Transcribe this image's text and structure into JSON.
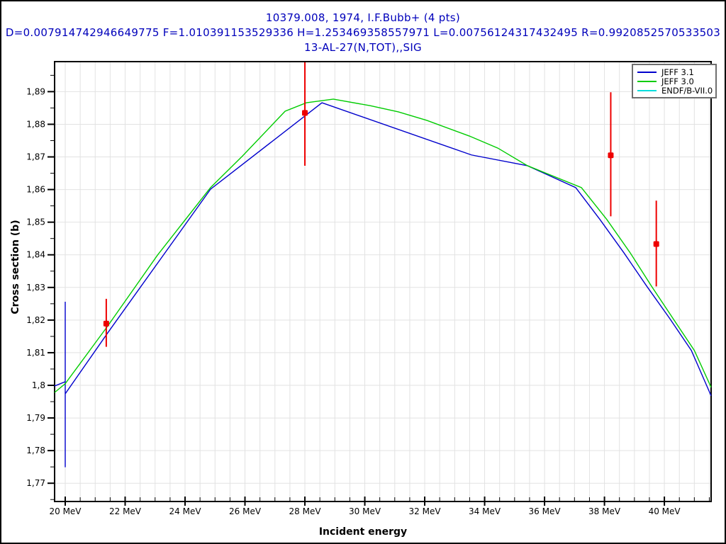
{
  "header": {
    "line1": "10379.008, 1974, I.F.Bubb+ (4 pts)",
    "line2": "D=0.007914742946649775 F=1.010391153529336 H=1.253469358557971 L=0.00756124317432495 R=0.9920852570533503",
    "line3": "13-AL-27(N,TOT),,SIG",
    "color": "#0000bb"
  },
  "axes": {
    "x_label": "Incident energy",
    "y_label": "Cross section (b)",
    "x_unit": "MeV"
  },
  "legend": {
    "items": [
      {
        "label": "JEFF 3.1",
        "color": "#0000cc"
      },
      {
        "label": "JEFF 3.0",
        "color": "#00cc00"
      },
      {
        "label": "ENDF/B-VII.0",
        "color": "#00dddd"
      }
    ]
  },
  "chart_data": {
    "type": "line",
    "title": "10379.008, 1974, I.F.Bubb+ (4 pts)",
    "subtitle": "13-AL-27(N,TOT),,SIG",
    "xlabel": "Incident energy",
    "ylabel": "Cross section (b)",
    "xlim": [
      19.645,
      41.56
    ],
    "ylim": [
      1.7644,
      1.8992
    ],
    "grid": {
      "on": true,
      "color": "#e2e2e2",
      "x_step": 0.5,
      "y_step": 0.01
    },
    "x_ticks": {
      "major": [
        20,
        22,
        24,
        26,
        28,
        30,
        32,
        34,
        36,
        38,
        40
      ],
      "labels": [
        "20 MeV",
        "22 MeV",
        "24 MeV",
        "26 MeV",
        "28 MeV",
        "30 MeV",
        "32 MeV",
        "34 MeV",
        "36 MeV",
        "38 MeV",
        "40 MeV"
      ],
      "minor_step": 0.5
    },
    "y_ticks": {
      "major": [
        1.89,
        1.88,
        1.87,
        1.86,
        1.85,
        1.84,
        1.83,
        1.82,
        1.81,
        1.8,
        1.79,
        1.78,
        1.77
      ],
      "labels": [
        "1,89",
        "1,88",
        "1,87",
        "1,86",
        "1,85",
        "1,84",
        "1,83",
        "1,82",
        "1,81",
        "1,8",
        "1,79",
        "1,78",
        "1,77"
      ],
      "minor_step": 0.005
    },
    "series": [
      {
        "name": "JEFF 3.1",
        "color": "#0000cc",
        "points": [
          [
            19.645,
            1.7998
          ],
          [
            20.0,
            1.8011
          ],
          [
            20.0,
            1.8256
          ],
          [
            20.0,
            1.7749
          ],
          [
            20.0,
            1.7974
          ],
          [
            21.42,
            1.8161
          ],
          [
            24.85,
            1.8601
          ],
          [
            28.57,
            1.8866
          ],
          [
            33.56,
            1.8706
          ],
          [
            35.43,
            1.8673
          ],
          [
            37.04,
            1.8606
          ],
          [
            37.85,
            1.8508
          ],
          [
            38.65,
            1.8406
          ],
          [
            39.41,
            1.8304
          ],
          [
            40.17,
            1.8206
          ],
          [
            40.9,
            1.8107
          ],
          [
            41.56,
            1.7968
          ]
        ]
      },
      {
        "name": "JEFF 3.0",
        "color": "#00cc00",
        "points": [
          [
            19.645,
            1.7978
          ],
          [
            20.0,
            1.8005
          ],
          [
            21.42,
            1.8182
          ],
          [
            23.08,
            1.8399
          ],
          [
            24.85,
            1.8606
          ],
          [
            25.92,
            1.8703
          ],
          [
            27.34,
            1.884
          ],
          [
            28.05,
            1.8866
          ],
          [
            28.95,
            1.8877
          ],
          [
            30.18,
            1.8857
          ],
          [
            31.12,
            1.8838
          ],
          [
            32.07,
            1.8812
          ],
          [
            33.49,
            1.8764
          ],
          [
            34.44,
            1.8727
          ],
          [
            35.43,
            1.8673
          ],
          [
            37.23,
            1.8606
          ],
          [
            38.08,
            1.8508
          ],
          [
            38.86,
            1.8406
          ],
          [
            39.57,
            1.8304
          ],
          [
            40.28,
            1.8206
          ],
          [
            41.0,
            1.8107
          ],
          [
            41.56,
            1.7994
          ]
        ]
      },
      {
        "name": "ENDF/B-VII.0",
        "color": "#00dddd",
        "points": []
      }
    ],
    "exp_points": {
      "name": "10379.008, 1974, I.F.Bubb+",
      "color": "#ee0000",
      "marker": "square",
      "data": [
        {
          "x": 21.37,
          "y": 1.8189,
          "y_lo": 1.8118,
          "y_hi": 1.8265
        },
        {
          "x": 28.0,
          "y": 1.8835,
          "y_lo": 1.8673,
          "y_hi": 1.899
        },
        {
          "x": 38.21,
          "y": 1.8705,
          "y_lo": 1.8518,
          "y_hi": 1.8898
        },
        {
          "x": 39.73,
          "y": 1.8433,
          "y_lo": 1.8303,
          "y_hi": 1.8566
        }
      ]
    }
  }
}
